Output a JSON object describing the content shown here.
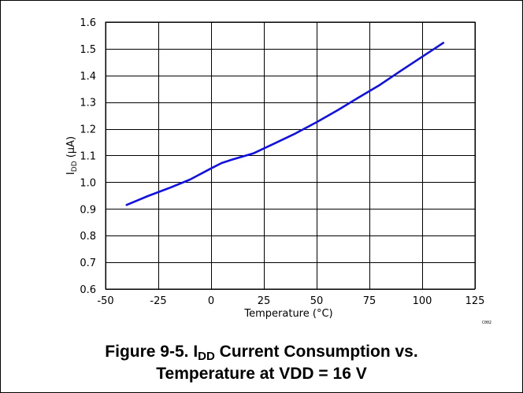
{
  "figure": {
    "caption_prefix": "Figure 9-5. I",
    "caption_sub": "DD",
    "caption_line1_rest": " Current Consumption vs.",
    "caption_line2": "Temperature at VDD = 16 V",
    "corner_mark": "C002"
  },
  "colors": {
    "series": "#1010e0",
    "grid": "#000000"
  },
  "chart_data": {
    "type": "line",
    "title": "",
    "xlabel": "Temperature (°C)",
    "ylabel_main": "I",
    "ylabel_sub": "DD",
    "ylabel_unit": " (µA)",
    "xlim": [
      -50,
      125
    ],
    "ylim": [
      0.6,
      1.6
    ],
    "x_ticks": [
      -50,
      -25,
      0,
      25,
      50,
      75,
      100,
      125
    ],
    "x_tick_labels": [
      "-50",
      "-25",
      "0",
      "25",
      "50",
      "75",
      "100",
      "125"
    ],
    "y_ticks": [
      0.6,
      0.7,
      0.8,
      0.9,
      1.0,
      1.1,
      1.2,
      1.3,
      1.4,
      1.5,
      1.6
    ],
    "y_tick_labels": [
      "0.6",
      "0.7",
      "0.8",
      "0.9",
      "1.0",
      "1.1",
      "1.2",
      "1.3",
      "1.4",
      "1.5",
      "1.6"
    ],
    "grid": true,
    "series": [
      {
        "x": [
          -40,
          -30,
          -20,
          -10,
          0,
          5,
          10,
          20,
          30,
          40,
          50,
          60,
          70,
          80,
          90,
          100,
          110
        ],
        "values": [
          0.915,
          0.948,
          0.978,
          1.01,
          1.052,
          1.072,
          1.085,
          1.108,
          1.145,
          1.183,
          1.225,
          1.27,
          1.318,
          1.365,
          1.418,
          1.47,
          1.522
        ]
      }
    ]
  }
}
